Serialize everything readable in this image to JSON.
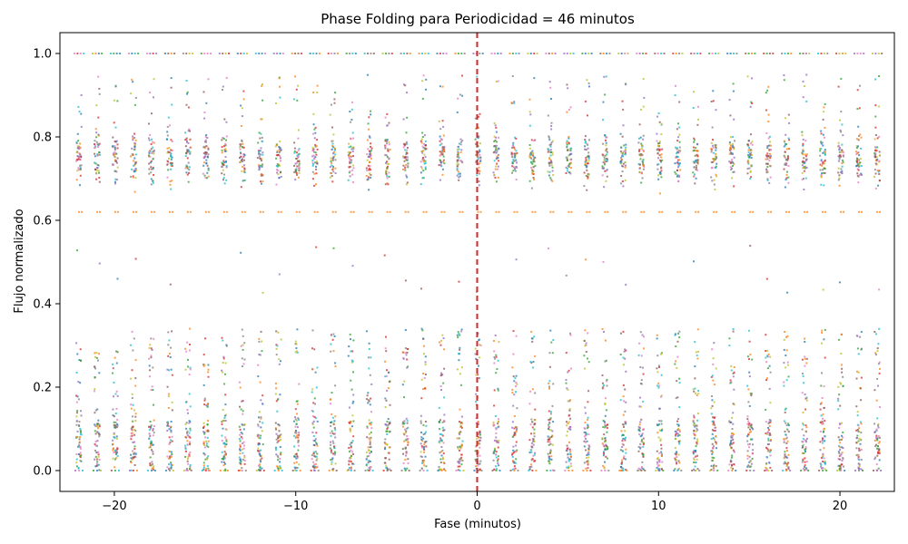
{
  "chart_data": {
    "type": "scatter",
    "title": "Phase Folding para Periodicidad = 46 minutos",
    "xlabel": "Fase (minutos)",
    "ylabel": "Flujo normalizado",
    "xlim": [
      -23,
      23
    ],
    "ylim": [
      -0.05,
      1.05
    ],
    "xticks": [
      -20,
      -10,
      0,
      10,
      20
    ],
    "xtick_labels": [
      "−20",
      "−10",
      "0",
      "10",
      "20"
    ],
    "yticks": [
      0.0,
      0.2,
      0.4,
      0.6,
      0.8,
      1.0
    ],
    "ytick_labels": [
      "0.0",
      "0.2",
      "0.4",
      "0.6",
      "0.8",
      "1.0"
    ],
    "grid": false,
    "reference_line": {
      "x": 0,
      "style": "dashed",
      "color": "#d62728"
    },
    "series_palette": [
      "#1f77b4",
      "#ff7f0e",
      "#2ca02c",
      "#d62728",
      "#9467bd",
      "#8c564b",
      "#e377c2",
      "#7f7f7f",
      "#bcbd22",
      "#17becf"
    ],
    "columns": {
      "phase_range": [
        -22,
        22
      ],
      "phase_step": 1,
      "bands": [
        {
          "name_hint": "top",
          "y_center": 1.0,
          "y_spread": 0.0
        },
        {
          "y_center": 0.75,
          "y_spread": 0.07
        },
        {
          "y_center": 0.62,
          "y_spread": 0.0
        },
        {
          "y_center": 0.05,
          "y_spread": 0.07
        },
        {
          "y_center": 0.2,
          "y_spread": 0.13
        }
      ]
    }
  }
}
